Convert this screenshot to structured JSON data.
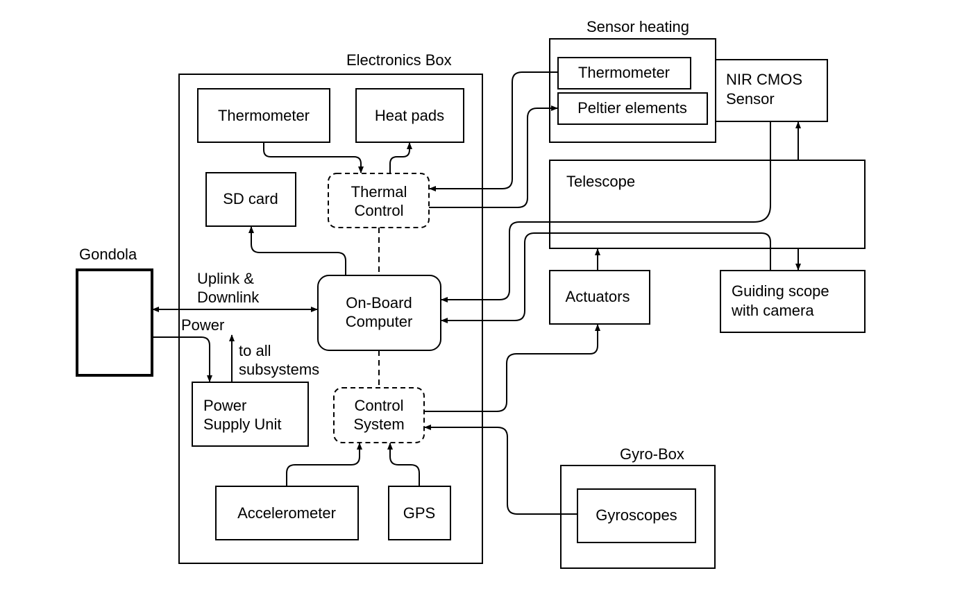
{
  "containers": {
    "electronics_box": "Electronics Box",
    "sensor_heating": "Sensor heating",
    "gyro_box": "Gyro-Box",
    "gondola": "Gondola"
  },
  "components": {
    "thermometer_eb": "Thermometer",
    "heat_pads": "Heat pads",
    "sd_card": "SD card",
    "thermal_control": [
      "Thermal",
      "Control"
    ],
    "on_board_computer": [
      "On-Board",
      "Computer"
    ],
    "power_supply_unit": [
      "Power",
      "Supply Unit"
    ],
    "control_system": [
      "Control",
      "System"
    ],
    "accelerometer": "Accelerometer",
    "gps": "GPS",
    "thermometer_sensor": "Thermometer",
    "peltier_elements": "Peltier elements",
    "nir_cmos_sensor": [
      "NIR CMOS",
      "Sensor"
    ],
    "telescope": "Telescope",
    "actuators": "Actuators",
    "guiding_scope": [
      "Guiding scope",
      "with camera"
    ],
    "gyroscopes": "Gyroscopes"
  },
  "labels": {
    "uplink_downlink": [
      "Uplink &",
      "Downlink"
    ],
    "power": "Power",
    "to_all_subsystems": [
      "to all",
      "subsystems"
    ]
  }
}
